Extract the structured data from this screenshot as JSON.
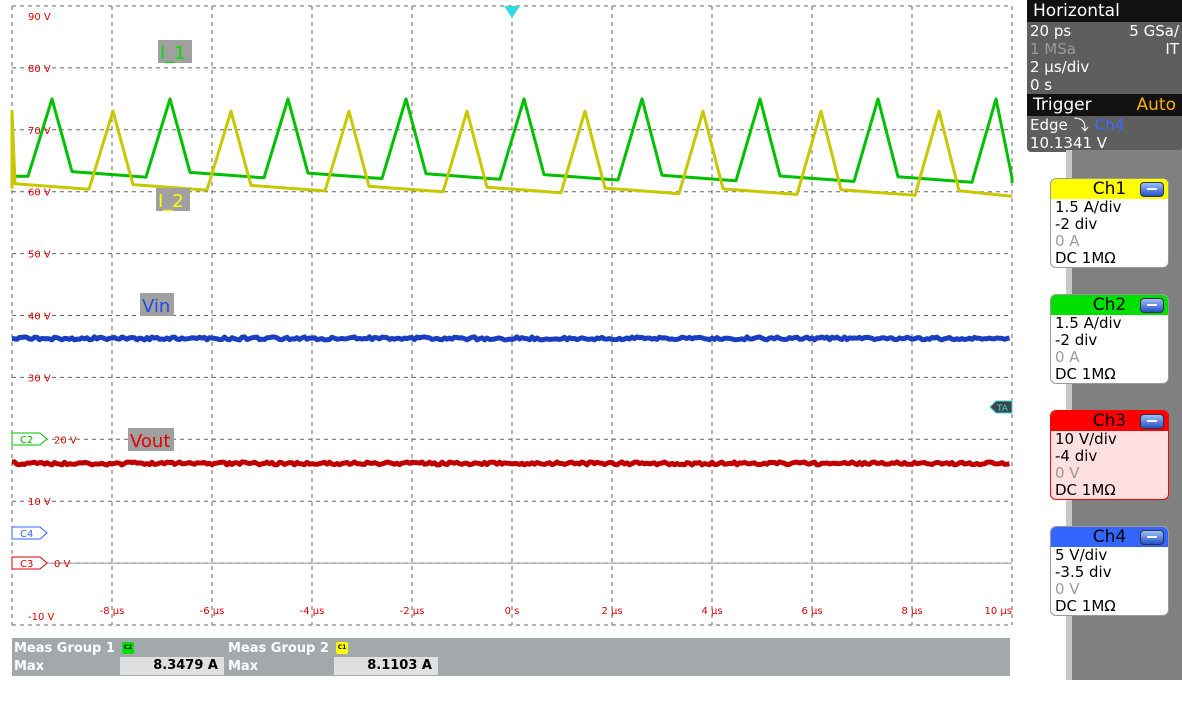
{
  "horizontal": {
    "title": "Horizontal",
    "resolution": "20 ps",
    "sample_rate": "5 GSa/",
    "record_length": "1 MSa",
    "mode": "IT",
    "time_scale": "2 µs/div",
    "position": "0 s"
  },
  "trigger": {
    "title": "Trigger",
    "mode": "Auto",
    "type": "Edge",
    "source": "Ch4",
    "level": "10.1341 V",
    "slope_icon": "falling-edge-icon"
  },
  "channels": [
    {
      "name": "Ch1",
      "scale": "1.5 A/div",
      "offset": "-2 div",
      "position": "0 A",
      "coupling": "DC 1MΩ",
      "color": "#ffff00"
    },
    {
      "name": "Ch2",
      "scale": "1.5 A/div",
      "offset": "-2 div",
      "position": "0 A",
      "coupling": "DC 1MΩ",
      "color": "#00e000"
    },
    {
      "name": "Ch3",
      "scale": "10 V/div",
      "offset": "-4 div",
      "position": "0 V",
      "coupling": "DC 1MΩ",
      "color": "#ff0000"
    },
    {
      "name": "Ch4",
      "scale": "5 V/div",
      "offset": "-3.5 div",
      "position": "0 V",
      "coupling": "DC 1MΩ",
      "color": "#3366ff"
    }
  ],
  "markers": {
    "c2": "C2",
    "c4": "C4",
    "c3": "C3",
    "trigger": "TA"
  },
  "measurements": [
    {
      "group": "Meas Group 1",
      "badge": "C2",
      "badge_color": "#00e000",
      "stat": "Max",
      "value": "8.3479 A"
    },
    {
      "group": "Meas Group 2",
      "badge": "C1",
      "badge_color": "#ffff00",
      "stat": "Max",
      "value": "8.1103 A"
    }
  ],
  "chart_data": {
    "type": "line",
    "xlim": [
      -10,
      10
    ],
    "ylim": [
      -10,
      90
    ],
    "x_ticks": [
      "-8 µs",
      "-6 µs",
      "-4 µs",
      "-2 µs",
      "0 s",
      "2 µs",
      "4 µs",
      "6 µs",
      "8 µs",
      "10 µs"
    ],
    "x_tick_values": [
      -8,
      -6,
      -4,
      -2,
      0,
      2,
      4,
      6,
      8,
      10
    ],
    "y_ticks": [
      "90 V",
      "80 V",
      "70 V",
      "60 V",
      "50 V",
      "40 V",
      "30 V",
      "20 V",
      "10 V",
      "0 V",
      "-10 V"
    ],
    "y_tick_values": [
      90,
      80,
      70,
      60,
      50,
      40,
      30,
      20,
      10,
      0,
      -10
    ],
    "grid": true,
    "series": [
      {
        "name": "I_1",
        "color": "#00c000",
        "shape": "triangle-pulse",
        "period_us": 2.36,
        "first_peak_us": -9.2,
        "peak": 75,
        "base_start": 62.5,
        "base_end": 61.5,
        "rise_us": 0.48,
        "fall_us": 0.4
      },
      {
        "name": "I_2",
        "color": "#c8c800",
        "shape": "triangle-pulse",
        "period_us": 2.36,
        "first_peak_us": -7.98,
        "peak": 73,
        "base_start": 60.5,
        "base_end": 59.3,
        "rise_us": 0.48,
        "fall_us": 0.4
      },
      {
        "name": "Vin",
        "color": "#1a3ec0",
        "shape": "flat",
        "level": 36.3
      },
      {
        "name": "Vout",
        "color": "#c00000",
        "shape": "flat",
        "level": 16.1
      }
    ]
  }
}
